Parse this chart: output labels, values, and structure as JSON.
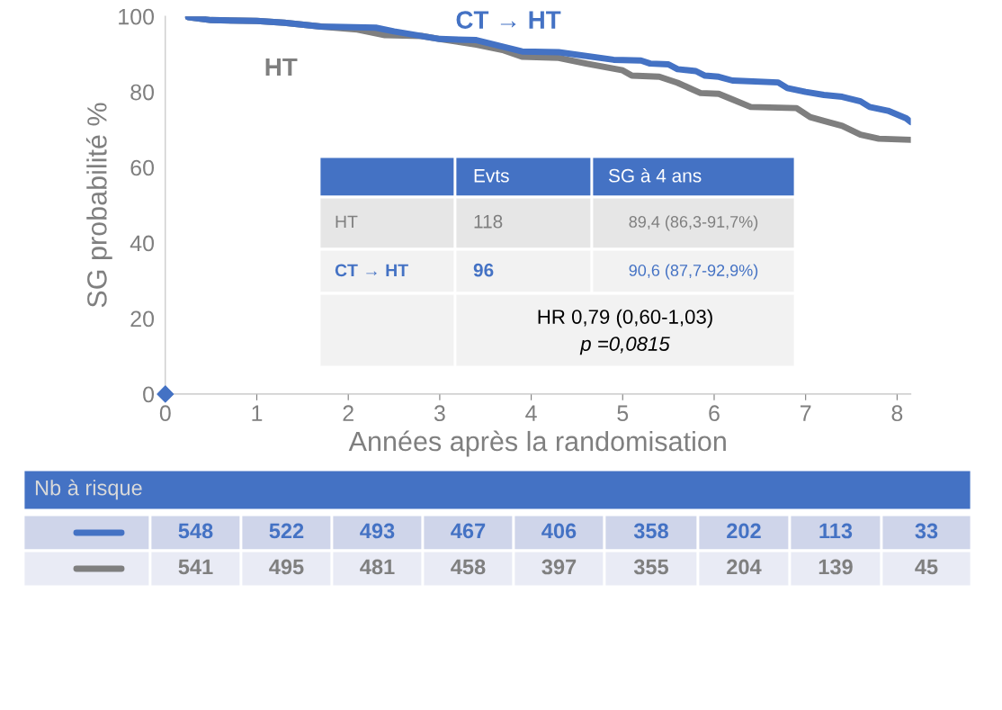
{
  "chart_data": {
    "type": "line",
    "xlabel": "Années après la randomisation",
    "ylabel": "SG probabilité %",
    "xlim": [
      0,
      8.15
    ],
    "ylim": [
      0,
      100
    ],
    "xticks": [
      0,
      1,
      2,
      3,
      4,
      5,
      6,
      7,
      8
    ],
    "yticks": [
      0,
      20,
      40,
      60,
      80,
      100
    ],
    "grid": false,
    "line_style": "solid",
    "marker": "none",
    "series": [
      {
        "name": "HT",
        "color": "#7f7f7f",
        "x": [
          0.25,
          0.5,
          1.0,
          1.3,
          1.7,
          2.1,
          2.4,
          2.8,
          3.0,
          3.4,
          3.7,
          3.9,
          4.3,
          4.6,
          5.0,
          5.1,
          5.4,
          5.6,
          5.85,
          6.05,
          6.2,
          6.4,
          6.9,
          7.05,
          7.2,
          7.4,
          7.6,
          7.8,
          8.15
        ],
        "values": [
          99.8,
          99,
          98.8,
          98.3,
          97.3,
          96.5,
          95,
          94.8,
          94,
          92.5,
          91,
          89.3,
          89,
          87.5,
          85.7,
          84.3,
          84,
          82.4,
          79.7,
          79.5,
          78,
          76,
          75.7,
          73.3,
          72.3,
          71,
          68.7,
          67.6,
          67.3
        ]
      },
      {
        "name": "CT → HT",
        "color": "#4472c4",
        "x": [
          0.25,
          0.5,
          1.0,
          1.3,
          1.7,
          2.3,
          2.5,
          3.0,
          3.4,
          3.6,
          3.9,
          4.3,
          4.9,
          5.2,
          5.3,
          5.5,
          5.6,
          5.8,
          5.9,
          6.05,
          6.2,
          6.7,
          6.8,
          7.0,
          7.2,
          7.4,
          7.6,
          7.7,
          7.9,
          8.1,
          8.15
        ],
        "values": [
          99.8,
          99,
          98.8,
          98.3,
          97.3,
          97,
          96,
          94,
          93.7,
          92.5,
          90.7,
          90.5,
          88.5,
          88.3,
          87.5,
          87.3,
          86,
          85.5,
          84.3,
          84,
          83,
          82.5,
          81,
          80,
          79.2,
          78.7,
          77.5,
          76,
          75,
          73,
          72
        ]
      },
      {
        "type": "scatter",
        "marker": "diamond",
        "color": "#4472c4",
        "x": [
          0
        ],
        "values": [
          0
        ]
      }
    ],
    "annotations": [
      "Evts",
      "SG à 4 ans",
      "HT",
      "118",
      "89,4 (86,3-91,7%)",
      "CT → HT",
      "96",
      "90,6 (87,7-92,9%)",
      "HR 0,79 (0,60-1,03)",
      "p =0,0815",
      "Nb à risque",
      "548",
      "522",
      "493",
      "467",
      "406",
      "358",
      "202",
      "113",
      "33",
      "541",
      "495",
      "481",
      "458",
      "397",
      "355",
      "204",
      "139",
      "45"
    ]
  }
}
